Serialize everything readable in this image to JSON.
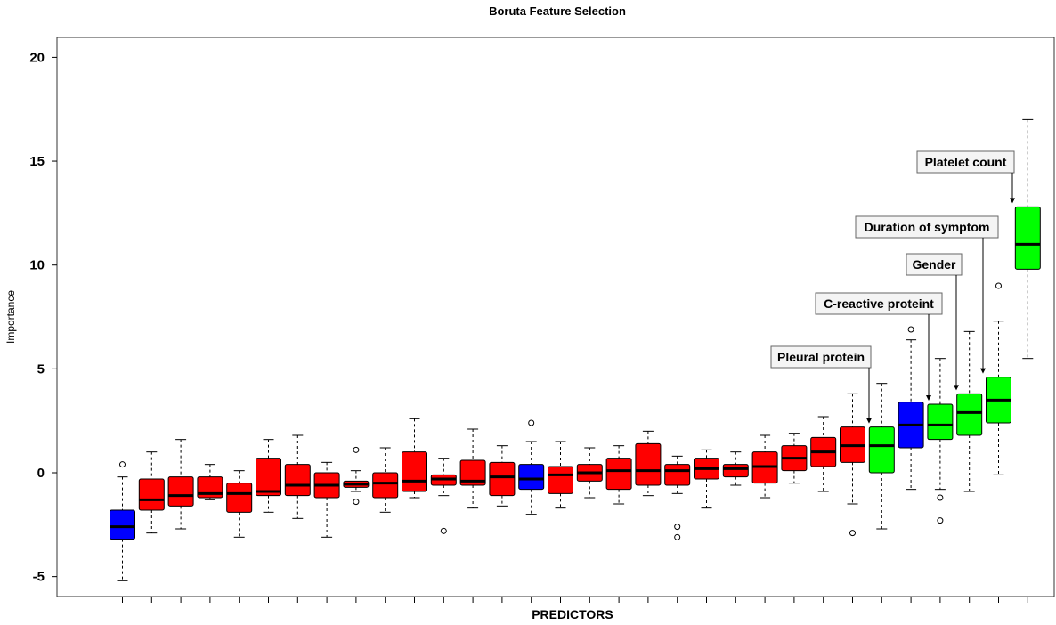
{
  "chart_data": {
    "type": "box",
    "title": "Boruta Feature Selection",
    "xlabel": "PREDICTORS",
    "ylabel": "Importance",
    "ylim": [
      -6,
      21
    ],
    "yticks": [
      -5,
      0,
      5,
      10,
      15,
      20
    ],
    "colors": {
      "rejected": "#ff0000",
      "shadow": "#0000ff",
      "confirmed": "#00ff00",
      "line": "#000000"
    },
    "boxes": [
      {
        "status": "shadow",
        "min": -5.2,
        "q1": -3.2,
        "median": -2.6,
        "q3": -1.8,
        "max": -0.2,
        "outliers": [
          0.4
        ]
      },
      {
        "status": "rejected",
        "min": -2.9,
        "q1": -1.8,
        "median": -1.3,
        "q3": -0.3,
        "max": 1.0,
        "outliers": []
      },
      {
        "status": "rejected",
        "min": -2.7,
        "q1": -1.6,
        "median": -1.1,
        "q3": -0.2,
        "max": 1.6,
        "outliers": []
      },
      {
        "status": "rejected",
        "min": -1.3,
        "q1": -1.2,
        "median": -1.0,
        "q3": -0.2,
        "max": 0.4,
        "outliers": []
      },
      {
        "status": "rejected",
        "min": -3.1,
        "q1": -1.9,
        "median": -1.0,
        "q3": -0.5,
        "max": 0.1,
        "outliers": []
      },
      {
        "status": "rejected",
        "min": -1.9,
        "q1": -1.1,
        "median": -0.9,
        "q3": 0.7,
        "max": 1.6,
        "outliers": []
      },
      {
        "status": "rejected",
        "min": -2.2,
        "q1": -1.1,
        "median": -0.6,
        "q3": 0.4,
        "max": 1.8,
        "outliers": []
      },
      {
        "status": "rejected",
        "min": -3.1,
        "q1": -1.2,
        "median": -0.6,
        "q3": 0.0,
        "max": 0.5,
        "outliers": []
      },
      {
        "status": "rejected",
        "min": -0.9,
        "q1": -0.7,
        "median": -0.55,
        "q3": -0.4,
        "max": 0.1,
        "outliers": [
          1.1,
          -1.4
        ]
      },
      {
        "status": "rejected",
        "min": -1.9,
        "q1": -1.2,
        "median": -0.5,
        "q3": 0.0,
        "max": 1.2,
        "outliers": []
      },
      {
        "status": "rejected",
        "min": -1.2,
        "q1": -0.9,
        "median": -0.4,
        "q3": 1.0,
        "max": 2.6,
        "outliers": []
      },
      {
        "status": "rejected",
        "min": -1.1,
        "q1": -0.6,
        "median": -0.3,
        "q3": -0.1,
        "max": 0.7,
        "outliers": [
          -2.8
        ]
      },
      {
        "status": "rejected",
        "min": -1.7,
        "q1": -0.6,
        "median": -0.4,
        "q3": 0.6,
        "max": 2.1,
        "outliers": []
      },
      {
        "status": "rejected",
        "min": -1.6,
        "q1": -1.1,
        "median": -0.2,
        "q3": 0.5,
        "max": 1.3,
        "outliers": []
      },
      {
        "status": "shadow",
        "min": -2.0,
        "q1": -0.8,
        "median": -0.3,
        "q3": 0.4,
        "max": 1.5,
        "outliers": [
          2.4
        ]
      },
      {
        "status": "rejected",
        "min": -1.7,
        "q1": -1.0,
        "median": -0.1,
        "q3": 0.3,
        "max": 1.5,
        "outliers": []
      },
      {
        "status": "rejected",
        "min": -1.2,
        "q1": -0.4,
        "median": 0.0,
        "q3": 0.4,
        "max": 1.2,
        "outliers": []
      },
      {
        "status": "rejected",
        "min": -1.5,
        "q1": -0.8,
        "median": 0.1,
        "q3": 0.7,
        "max": 1.3,
        "outliers": []
      },
      {
        "status": "rejected",
        "min": -1.1,
        "q1": -0.6,
        "median": 0.1,
        "q3": 1.4,
        "max": 2.0,
        "outliers": []
      },
      {
        "status": "rejected",
        "min": -1.0,
        "q1": -0.6,
        "median": 0.1,
        "q3": 0.4,
        "max": 0.8,
        "outliers": [
          -2.6,
          -3.1
        ]
      },
      {
        "status": "rejected",
        "min": -1.7,
        "q1": -0.3,
        "median": 0.2,
        "q3": 0.7,
        "max": 1.1,
        "outliers": []
      },
      {
        "status": "rejected",
        "min": -0.6,
        "q1": -0.2,
        "median": 0.2,
        "q3": 0.4,
        "max": 1.0,
        "outliers": []
      },
      {
        "status": "rejected",
        "min": -1.2,
        "q1": -0.5,
        "median": 0.3,
        "q3": 1.0,
        "max": 1.8,
        "outliers": []
      },
      {
        "status": "rejected",
        "min": -0.5,
        "q1": 0.1,
        "median": 0.7,
        "q3": 1.3,
        "max": 1.9,
        "outliers": []
      },
      {
        "status": "rejected",
        "min": -0.9,
        "q1": 0.3,
        "median": 1.0,
        "q3": 1.7,
        "max": 2.7,
        "outliers": []
      },
      {
        "status": "rejected",
        "min": -1.5,
        "q1": 0.5,
        "median": 1.3,
        "q3": 2.2,
        "max": 3.8,
        "outliers": [
          -2.9
        ]
      },
      {
        "status": "confirmed",
        "min": -2.7,
        "q1": 0.0,
        "median": 1.3,
        "q3": 2.2,
        "max": 4.3,
        "outliers": []
      },
      {
        "status": "shadow",
        "min": -0.8,
        "q1": 1.2,
        "median": 2.3,
        "q3": 3.4,
        "max": 6.4,
        "outliers": [
          6.9
        ]
      },
      {
        "status": "confirmed",
        "min": -0.8,
        "q1": 1.6,
        "median": 2.3,
        "q3": 3.3,
        "max": 5.5,
        "outliers": [
          -1.2,
          -2.3
        ]
      },
      {
        "status": "confirmed",
        "min": -0.9,
        "q1": 1.8,
        "median": 2.9,
        "q3": 3.8,
        "max": 6.8,
        "outliers": []
      },
      {
        "status": "confirmed",
        "min": -0.1,
        "q1": 2.4,
        "median": 3.5,
        "q3": 4.6,
        "max": 7.3,
        "outliers": [
          9.0
        ]
      },
      {
        "status": "confirmed",
        "min": 5.5,
        "q1": 9.8,
        "median": 11.0,
        "q3": 12.8,
        "max": 17.0,
        "outliers": []
      }
    ],
    "annotations": [
      {
        "text": "Pleural protein",
        "box": 26
      },
      {
        "text": "C-reactive proteint",
        "box": 28
      },
      {
        "text": "Gender",
        "box": 29
      },
      {
        "text": "Duration of symptom",
        "box": 30
      },
      {
        "text": "Platelet count",
        "box": 31
      }
    ]
  }
}
